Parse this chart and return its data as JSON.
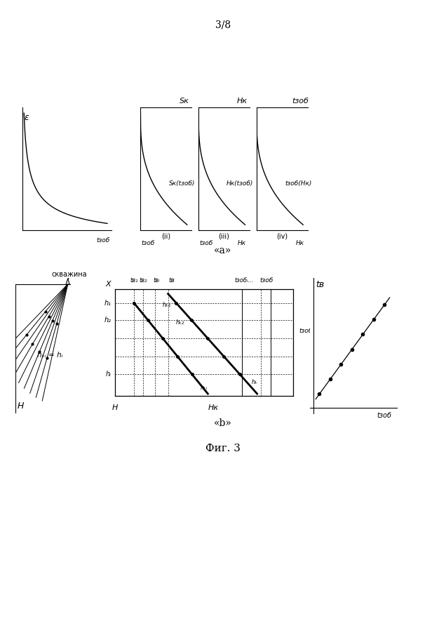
{
  "page_label": "3/8",
  "label_a": "«a»",
  "label_b": "«b»",
  "fig_label": "Фиг. 3",
  "background_color": "#ffffff",
  "line_color": "#000000",
  "skv_label": "скважина",
  "hki_eq_hi": "hₖᵢ = hᵢ",
  "top_chart1_ylabel": "ε",
  "top_chart1_xlabel": "tзоб",
  "top_chart2_ylabel": "Sк",
  "top_chart2_label": "Sк(tзоб)",
  "top_chart2_xlabel": "tзоб",
  "top_chart3_ylabel": "Hк",
  "top_chart3_label": "Hк(tзоб)",
  "top_chart3_xlabel": "tзоб",
  "top_chart4_ylabel": "tзоб",
  "top_chart4_label": "tзоб(Hк)",
  "top_chart4_xlabel": "Hк",
  "sub1": "(ii)",
  "sub2": "(iii)",
  "sub3": "(iv)",
  "right_chart_ylabel": "tв",
  "right_chart_xlabel": "tзоб",
  "mid_xlabel_H": "H",
  "mid_xlabel_HK": "Hк",
  "mid_ylabel_h1": "h₁",
  "mid_ylabel_h2": "h₂",
  "mid_ylabel_hi": "hᵢ"
}
